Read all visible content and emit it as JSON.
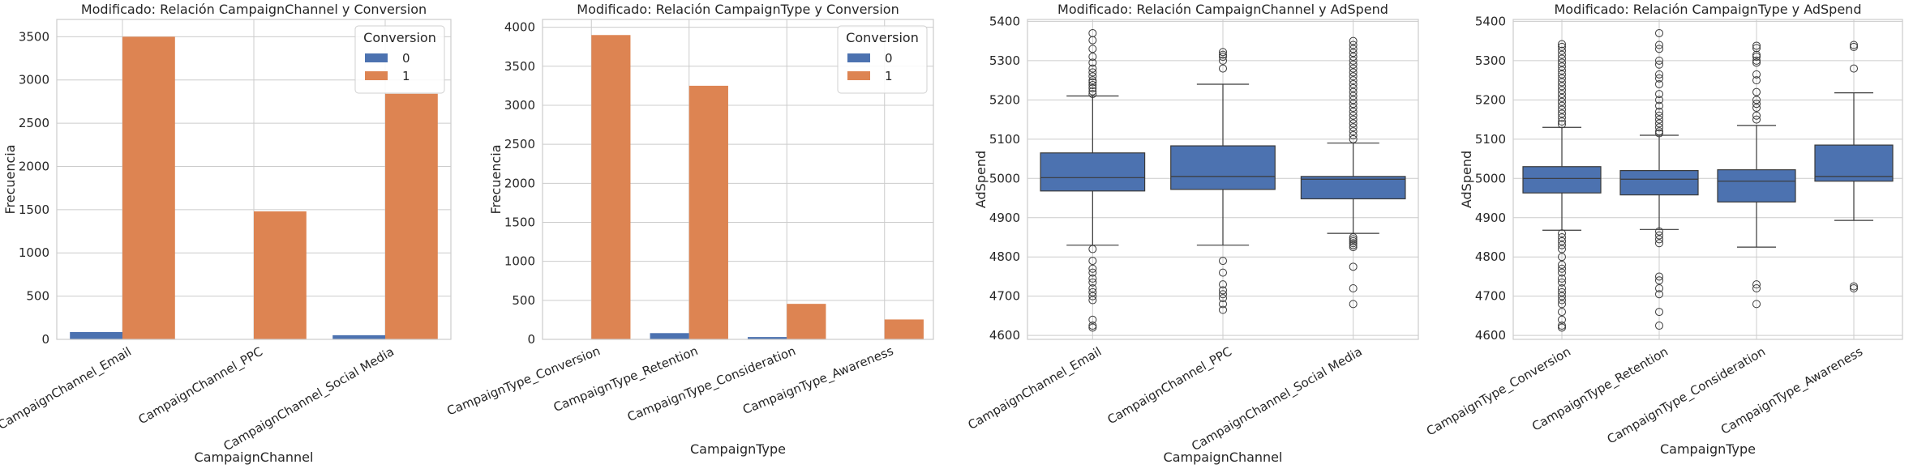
{
  "chart_data": [
    {
      "type": "bar",
      "title": "Modificado: Relación CampaignChannel y Conversion",
      "xlabel": "CampaignChannel",
      "ylabel": "Frecuencia",
      "ylim": [
        0,
        3700
      ],
      "yticks": [
        0,
        500,
        1000,
        1500,
        2000,
        2500,
        3000,
        3500
      ],
      "categories": [
        "CampaignChannel_Email",
        "CampaignChannel_PPC",
        "CampaignChannel_Social Media"
      ],
      "legend": {
        "title": "Conversion",
        "position": "upper right"
      },
      "series": [
        {
          "name": "0",
          "color": "#4c72b0",
          "values": [
            85,
            0,
            48
          ]
        },
        {
          "name": "1",
          "color": "#dd8452",
          "values": [
            3500,
            1480,
            2840
          ]
        }
      ]
    },
    {
      "type": "bar",
      "title": "Modificado: Relación CampaignType y Conversion",
      "xlabel": "CampaignType",
      "ylabel": "Frecuencia",
      "ylim": [
        0,
        4100
      ],
      "yticks": [
        0,
        500,
        1000,
        1500,
        2000,
        2500,
        3000,
        3500,
        4000
      ],
      "categories": [
        "CampaignType_Conversion",
        "CampaignType_Retention",
        "CampaignType_Consideration",
        "CampaignType_Awareness"
      ],
      "legend": {
        "title": "Conversion",
        "position": "upper right"
      },
      "series": [
        {
          "name": "0",
          "color": "#4c72b0",
          "values": [
            0,
            80,
            30,
            0
          ]
        },
        {
          "name": "1",
          "color": "#dd8452",
          "values": [
            3900,
            3250,
            455,
            255
          ]
        }
      ]
    },
    {
      "type": "box",
      "title": "Modificado: Relación CampaignChannel y AdSpend",
      "xlabel": "CampaignChannel",
      "ylabel": "AdSpend",
      "ylim": [
        4590,
        5405
      ],
      "yticks": [
        4600,
        4700,
        4800,
        4900,
        5000,
        5100,
        5200,
        5300,
        5400
      ],
      "color": "#4c72b0",
      "categories": [
        "CampaignChannel_Email",
        "CampaignChannel_PPC",
        "CampaignChannel_Social Media"
      ],
      "boxes": [
        {
          "whislo": 4830,
          "q1": 4968,
          "med": 5002,
          "q3": 5065,
          "whishi": 5210,
          "fliers": [
            5370,
            5352,
            5330,
            5310,
            5295,
            5280,
            5270,
            5260,
            5250,
            5245,
            5238,
            5230,
            5222,
            5215,
            4820,
            4790,
            4770,
            4760,
            4745,
            4735,
            4720,
            4710,
            4700,
            4690,
            4640,
            4625,
            4620
          ]
        },
        {
          "whislo": 4830,
          "q1": 4972,
          "med": 5005,
          "q3": 5083,
          "whishi": 5240,
          "fliers": [
            5322,
            5315,
            5310,
            5300,
            5280,
            4790,
            4760,
            4730,
            4715,
            4705,
            4695,
            4680,
            4665
          ]
        },
        {
          "whislo": 4860,
          "q1": 4948,
          "med": 4998,
          "q3": 5005,
          "whishi": 5090,
          "fliers": [
            5350,
            5340,
            5330,
            5320,
            5310,
            5300,
            5290,
            5280,
            5270,
            5260,
            5250,
            5240,
            5230,
            5220,
            5210,
            5200,
            5190,
            5180,
            5170,
            5160,
            5150,
            5140,
            5130,
            5120,
            5110,
            5100,
            4850,
            4845,
            4840,
            4835,
            4830,
            4825,
            4775,
            4720,
            4680
          ]
        }
      ]
    },
    {
      "type": "box",
      "title": "Modificado: Relación CampaignType y AdSpend",
      "xlabel": "CampaignType",
      "ylabel": "AdSpend",
      "ylim": [
        4590,
        5405
      ],
      "yticks": [
        4600,
        4700,
        4800,
        4900,
        5000,
        5100,
        5200,
        5300,
        5400
      ],
      "color": "#4c72b0",
      "categories": [
        "CampaignType_Conversion",
        "CampaignType_Retention",
        "CampaignType_Consideration",
        "CampaignType_Awareness"
      ],
      "boxes": [
        {
          "whislo": 4868,
          "q1": 4963,
          "med": 5000,
          "q3": 5030,
          "whishi": 5130,
          "fliers": [
            5342,
            5335,
            5325,
            5315,
            5305,
            5295,
            5285,
            5275,
            5265,
            5255,
            5245,
            5235,
            5225,
            5215,
            5205,
            5195,
            5185,
            5175,
            5165,
            5155,
            5145,
            5138,
            4860,
            4850,
            4840,
            4830,
            4820,
            4800,
            4780,
            4770,
            4760,
            4745,
            4735,
            4720,
            4710,
            4700,
            4690,
            4680,
            4660,
            4640,
            4625,
            4620
          ]
        },
        {
          "whislo": 4870,
          "q1": 4958,
          "med": 4998,
          "q3": 5020,
          "whishi": 5110,
          "fliers": [
            5370,
            5340,
            5330,
            5300,
            5290,
            5265,
            5255,
            5240,
            5215,
            5200,
            5185,
            5170,
            5160,
            5150,
            5140,
            5130,
            5120,
            5115,
            4865,
            4855,
            4845,
            4835,
            4750,
            4740,
            4720,
            4705,
            4660,
            4625
          ]
        },
        {
          "whislo": 4825,
          "q1": 4940,
          "med": 4993,
          "q3": 5022,
          "whishi": 5135,
          "fliers": [
            5338,
            5332,
            5315,
            5310,
            5300,
            5295,
            5265,
            5250,
            5220,
            5200,
            5190,
            5180,
            5160,
            5150,
            4730,
            4720,
            4680
          ]
        },
        {
          "whislo": 4893,
          "q1": 4993,
          "med": 5005,
          "q3": 5085,
          "whishi": 5218,
          "fliers": [
            5340,
            5335,
            5280,
            4725,
            4720
          ]
        }
      ]
    }
  ]
}
